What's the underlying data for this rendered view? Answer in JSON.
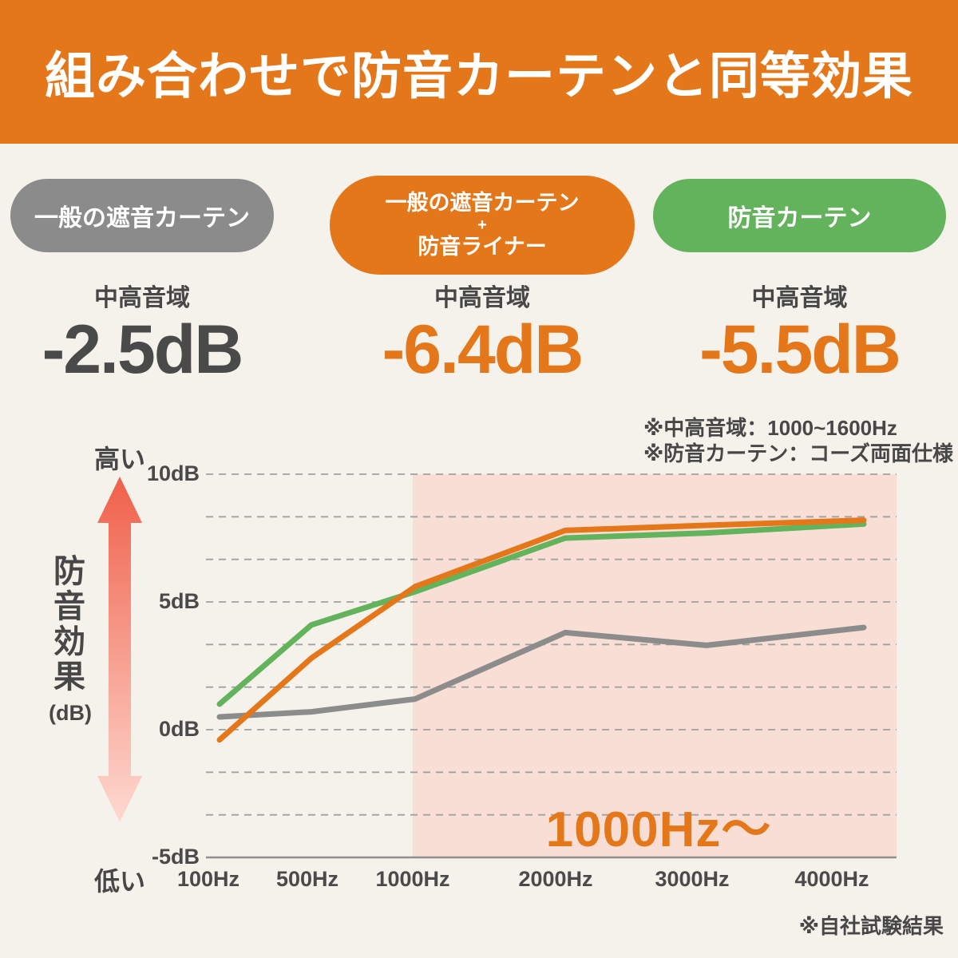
{
  "header": {
    "title": "組み合わせで防音カーテンと同等効果"
  },
  "comparison": {
    "items": [
      {
        "pill_lines": [
          "一般の遮音カーテン"
        ],
        "pill_color": "#8b8b8b",
        "range_label": "中高音域",
        "value": "-2.5dB",
        "value_color": "#4a4a4a"
      },
      {
        "pill_lines": [
          "一般の遮音カーテン",
          "+",
          "防音ライナー"
        ],
        "pill_color": "#e5771b",
        "range_label": "中高音域",
        "value": "-6.4dB",
        "value_color": "#e5771b"
      },
      {
        "pill_lines": [
          "防音カーテン"
        ],
        "pill_color": "#63b35c",
        "range_label": "中高音域",
        "value": "-5.5dB",
        "value_color": "#e5771b"
      }
    ]
  },
  "notes": {
    "line1": "※中高音域：1000~1600Hz",
    "line2": "※防音カーテン：コーズ両面仕様"
  },
  "y_axis": {
    "title": "防音効果",
    "unit": "(dB)",
    "high": "高い",
    "low": "低い"
  },
  "footnote": "※自社試験結果",
  "chart_data": {
    "type": "line",
    "categories": [
      "100Hz",
      "500Hz",
      "1000Hz",
      "2000Hz",
      "3000Hz",
      "4000Hz"
    ],
    "series": [
      {
        "name": "一般の遮音カーテン",
        "color": "#8c8c8c",
        "values": [
          0.5,
          0.7,
          1.2,
          3.8,
          3.3,
          4.0
        ]
      },
      {
        "name": "一般の遮音カーテン＋防音ライナー",
        "color": "#e5771b",
        "values": [
          -0.4,
          2.8,
          5.6,
          7.8,
          8.0,
          8.2
        ]
      },
      {
        "name": "防音カーテン",
        "color": "#63b35c",
        "values": [
          1.0,
          4.1,
          5.4,
          7.5,
          7.7,
          8.05
        ]
      }
    ],
    "ylabel": "防音効果(dB)",
    "ylim": [
      -5,
      10
    ],
    "yticks": [
      {
        "value": 10,
        "label": "10dB"
      },
      {
        "value": 5,
        "label": "5dB"
      },
      {
        "value": 0,
        "label": "0dB"
      },
      {
        "value": -5,
        "label": "-5dB"
      }
    ],
    "grid": "horizontal-dashed",
    "legend": "none",
    "highlight": {
      "from_category": "1000Hz",
      "label": "1000Hz〜",
      "label_color": "#e5771b",
      "region_color": "#f9ded5"
    }
  }
}
